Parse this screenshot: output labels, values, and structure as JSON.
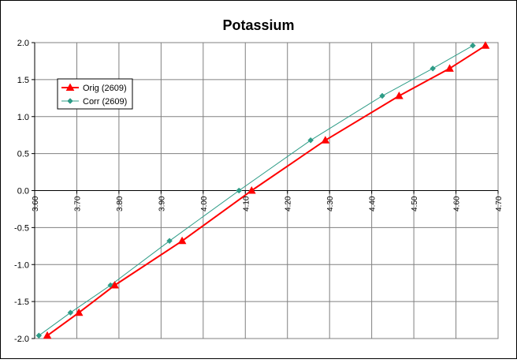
{
  "chart_data": {
    "type": "line",
    "title": "Potassium",
    "xlabel": "",
    "ylabel": "",
    "xlim": [
      3.6,
      4.7
    ],
    "ylim": [
      -2.0,
      2.0
    ],
    "x_ticks": [
      "3.60",
      "3.70",
      "3.80",
      "3.90",
      "4.00",
      "4.10",
      "4.20",
      "4.30",
      "4.40",
      "4.50",
      "4.60",
      "4.70"
    ],
    "y_ticks": [
      "2.0",
      "1.5",
      "1.0",
      "0.5",
      "0.0",
      "-0.5",
      "-1.0",
      "-1.5",
      "-2.0"
    ],
    "grid": true,
    "legend_position": "upper-left",
    "series": [
      {
        "name": "Orig (2609)",
        "color": "#ff0000",
        "marker": "triangle",
        "x": [
          3.63,
          3.705,
          3.79,
          3.95,
          4.115,
          4.29,
          4.465,
          4.585,
          4.67
        ],
        "y": [
          -1.96,
          -1.65,
          -1.28,
          -0.68,
          0.0,
          0.68,
          1.28,
          1.65,
          1.96
        ]
      },
      {
        "name": "Corr (2609)",
        "color": "#2e9c87",
        "marker": "diamond",
        "x": [
          3.61,
          3.685,
          3.78,
          3.92,
          4.085,
          4.255,
          4.425,
          4.545,
          4.64
        ],
        "y": [
          -1.96,
          -1.65,
          -1.28,
          -0.68,
          0.0,
          0.68,
          1.28,
          1.65,
          1.96
        ]
      }
    ]
  }
}
